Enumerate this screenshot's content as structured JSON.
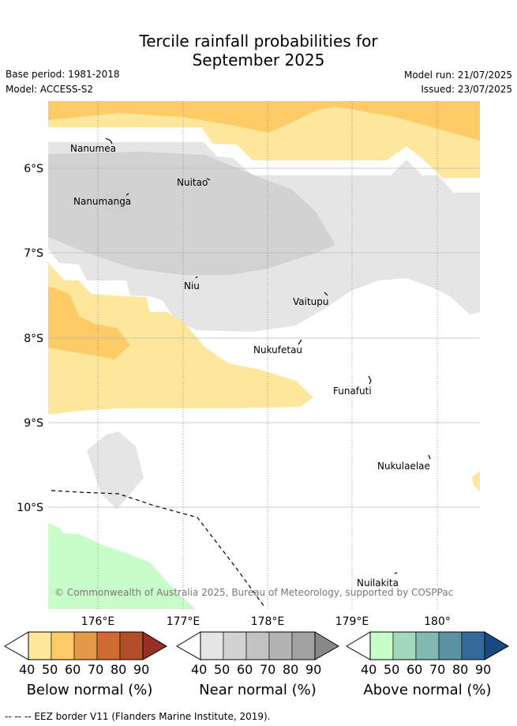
{
  "header": {
    "title_line1": "Tercile rainfall probabilities for",
    "title_line2": "September 2025",
    "base_period": "Base period: 1981-2018",
    "model": "Model: ACCESS-S2",
    "model_run": "Model run: 21/07/2025",
    "issued": "Issued: 23/07/2025"
  },
  "map": {
    "lat_labels": [
      "6°S",
      "7°S",
      "8°S",
      "9°S",
      "10°S"
    ],
    "lon_labels": [
      "176°E",
      "177°E",
      "178°E",
      "179°E",
      "180°"
    ],
    "islands": [
      "Nanumea",
      "Nuitao",
      "Nanumanga",
      "Niu",
      "Vaitupu",
      "Nukufetau",
      "Funafuti",
      "Nukulaelae",
      "Nuilakita"
    ],
    "copyright": "© Commonwealth of Australia 2025, Bureau of Meteorology, supported by COSPPac",
    "colors": {
      "below_50": "#fee79c",
      "below_60": "#fecb67",
      "near_50": "#e5e5e5",
      "near_60": "#d2d2d2",
      "above_50": "#c8fcc8"
    }
  },
  "colorbars": [
    {
      "label": "Below normal (%)",
      "ticks": [
        "40",
        "50",
        "60",
        "70",
        "80",
        "90"
      ],
      "colors": [
        "#fee79c",
        "#fecb67",
        "#e49948",
        "#d06932",
        "#b24e2a",
        "#973024"
      ]
    },
    {
      "label": "Near normal (%)",
      "ticks": [
        "40",
        "50",
        "60",
        "70",
        "80",
        "90"
      ],
      "colors": [
        "#e5e5e5",
        "#d2d2d2",
        "#c2c2c2",
        "#b3b3b3",
        "#a2a2a2",
        "#888888"
      ]
    },
    {
      "label": "Above normal (%)",
      "ticks": [
        "40",
        "50",
        "60",
        "70",
        "80",
        "90"
      ],
      "colors": [
        "#c8fcc8",
        "#a3d8bc",
        "#81b9b2",
        "#5b92a2",
        "#346a9a",
        "#174a80"
      ]
    }
  ],
  "footnote": "-- -- -- EEZ border V11 (Flanders Marine Institute, 2019)."
}
